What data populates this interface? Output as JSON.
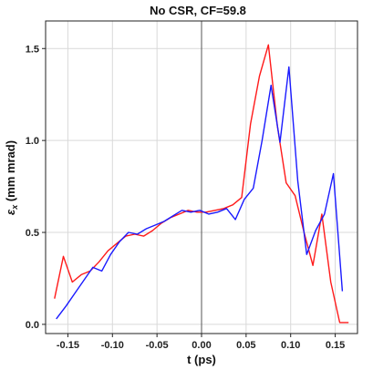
{
  "chart_data": {
    "type": "line",
    "title": "No CSR, CF=59.8",
    "xlabel": "t (ps)",
    "ylabel_symbol": "ε",
    "ylabel_subscript": "x",
    "ylabel_unit": " (mm mrad)",
    "xlim": [
      -0.175,
      0.175
    ],
    "ylim": [
      -0.05,
      1.65
    ],
    "xticks": [
      -0.15,
      -0.1,
      -0.05,
      0.0,
      0.05,
      0.1,
      0.15
    ],
    "xtick_labels": [
      "-0.15",
      "-0.10",
      "-0.05",
      "0.00",
      "0.05",
      "0.10",
      "0.15"
    ],
    "yticks": [
      0.0,
      0.5,
      1.0,
      1.5
    ],
    "ytick_labels": [
      "0.0",
      "0.5",
      "1.0",
      "1.5"
    ],
    "grid": true,
    "series": [
      {
        "color": "#ff1a1a",
        "x": [
          -0.165,
          -0.155,
          -0.145,
          -0.135,
          -0.125,
          -0.115,
          -0.105,
          -0.095,
          -0.085,
          -0.075,
          -0.065,
          -0.055,
          -0.045,
          -0.035,
          -0.025,
          -0.015,
          -0.005,
          0.005,
          0.015,
          0.025,
          0.035,
          0.045,
          0.055,
          0.065,
          0.075,
          0.085,
          0.095,
          0.105,
          0.115,
          0.125,
          0.135,
          0.145,
          0.155,
          0.165
        ],
        "y": [
          0.14,
          0.37,
          0.23,
          0.27,
          0.29,
          0.34,
          0.4,
          0.44,
          0.48,
          0.49,
          0.48,
          0.51,
          0.55,
          0.58,
          0.6,
          0.62,
          0.61,
          0.61,
          0.62,
          0.63,
          0.65,
          0.69,
          1.09,
          1.35,
          1.52,
          1.08,
          0.77,
          0.7,
          0.5,
          0.32,
          0.6,
          0.23,
          0.01,
          0.01
        ]
      },
      {
        "color": "#1a1aff",
        "x": [
          -0.163,
          -0.152,
          -0.142,
          -0.132,
          -0.122,
          -0.112,
          -0.102,
          -0.092,
          -0.082,
          -0.072,
          -0.062,
          -0.052,
          -0.042,
          -0.032,
          -0.022,
          -0.012,
          -0.002,
          0.008,
          0.018,
          0.028,
          0.038,
          0.048,
          0.058,
          0.068,
          0.078,
          0.088,
          0.098,
          0.108,
          0.118,
          0.128,
          0.138,
          0.148,
          0.158
        ],
        "y": [
          0.03,
          0.1,
          0.17,
          0.24,
          0.31,
          0.29,
          0.38,
          0.45,
          0.5,
          0.49,
          0.52,
          0.54,
          0.56,
          0.59,
          0.62,
          0.61,
          0.62,
          0.6,
          0.61,
          0.63,
          0.57,
          0.68,
          0.74,
          1.0,
          1.3,
          0.99,
          1.4,
          0.78,
          0.38,
          0.51,
          0.6,
          0.82,
          0.18
        ]
      }
    ]
  }
}
